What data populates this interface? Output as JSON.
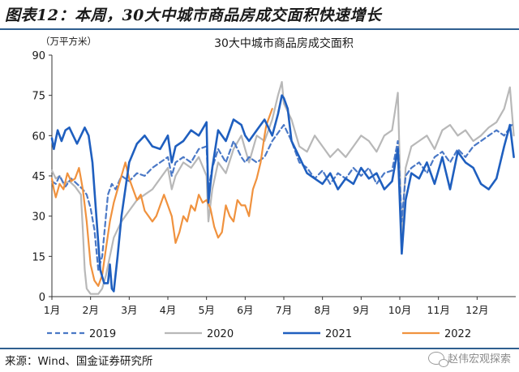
{
  "figure": {
    "title": "图表12：本周，30大中城市商品房成交面积快速增长",
    "source": "来源：Wind、国金证券研究所",
    "watermark": "赵伟宏观探索"
  },
  "chart_data": {
    "type": "line",
    "title": "30大中城市商品房成交面积",
    "ylabel": "（万平方米）",
    "xlabel": "",
    "ylim": [
      0,
      90
    ],
    "yticks": [
      0,
      15,
      30,
      45,
      60,
      75,
      90
    ],
    "xlim": [
      1,
      13
    ],
    "xticks": [
      1,
      2,
      3,
      4,
      5,
      6,
      7,
      8,
      9,
      10,
      11,
      12
    ],
    "xtick_labels": [
      "1月",
      "2月",
      "3月",
      "4月",
      "5月",
      "6月",
      "7月",
      "8月",
      "9月",
      "10月",
      "11月",
      "12月"
    ],
    "grid": false,
    "legend_position": "bottom",
    "series": [
      {
        "name": "2019",
        "color": "#4a78c6",
        "dash": true,
        "x": [
          1.0,
          1.1,
          1.2,
          1.35,
          1.5,
          1.65,
          1.8,
          1.9,
          2.0,
          2.1,
          2.2,
          2.3,
          2.45,
          2.55,
          2.65,
          2.8,
          3.0,
          3.2,
          3.4,
          3.6,
          3.8,
          4.0,
          4.1,
          4.2,
          4.4,
          4.6,
          4.8,
          5.0,
          5.05,
          5.15,
          5.3,
          5.5,
          5.7,
          5.9,
          6.0,
          6.1,
          6.3,
          6.5,
          6.7,
          6.9,
          7.0,
          7.2,
          7.4,
          7.6,
          7.8,
          8.0,
          8.2,
          8.4,
          8.6,
          8.8,
          9.0,
          9.2,
          9.4,
          9.6,
          9.8,
          9.95,
          10.05,
          10.15,
          10.3,
          10.5,
          10.7,
          10.9,
          11.1,
          11.3,
          11.5,
          11.7,
          11.9,
          12.1,
          12.3,
          12.5,
          12.7,
          12.9
        ],
        "y": [
          43,
          42,
          45,
          41,
          44,
          42,
          40,
          38,
          33,
          25,
          10,
          15,
          38,
          42,
          40,
          45,
          43,
          46,
          45,
          48,
          50,
          52,
          45,
          50,
          52,
          50,
          55,
          56,
          40,
          48,
          55,
          50,
          58,
          52,
          50,
          52,
          50,
          52,
          58,
          62,
          64,
          58,
          50,
          48,
          44,
          47,
          42,
          46,
          44,
          48,
          45,
          48,
          42,
          46,
          47,
          58,
          28,
          45,
          48,
          50,
          46,
          52,
          54,
          50,
          55,
          52,
          56,
          58,
          60,
          62,
          60,
          64
        ]
      },
      {
        "name": "2020",
        "color": "#b8b8b8",
        "dash": false,
        "x": [
          1.0,
          1.1,
          1.2,
          1.3,
          1.45,
          1.6,
          1.75,
          1.8,
          1.85,
          1.9,
          2.0,
          2.1,
          2.2,
          2.3,
          2.4,
          2.5,
          2.6,
          2.7,
          2.8,
          3.0,
          3.2,
          3.4,
          3.6,
          3.8,
          4.0,
          4.1,
          4.2,
          4.4,
          4.6,
          4.8,
          5.0,
          5.05,
          5.15,
          5.3,
          5.5,
          5.7,
          5.9,
          6.0,
          6.1,
          6.3,
          6.5,
          6.7,
          6.85,
          6.95,
          7.0,
          7.2,
          7.4,
          7.6,
          7.8,
          8.0,
          8.2,
          8.4,
          8.6,
          8.8,
          9.0,
          9.2,
          9.4,
          9.6,
          9.8,
          9.95,
          10.05,
          10.15,
          10.3,
          10.5,
          10.7,
          10.9,
          11.1,
          11.3,
          11.5,
          11.7,
          11.9,
          12.1,
          12.3,
          12.5,
          12.7,
          12.85,
          12.95
        ],
        "y": [
          47,
          44,
          45,
          42,
          43,
          41,
          38,
          25,
          10,
          3,
          1,
          1,
          1,
          3,
          8,
          15,
          22,
          25,
          28,
          32,
          36,
          38,
          40,
          44,
          48,
          40,
          45,
          50,
          48,
          52,
          45,
          28,
          40,
          50,
          46,
          55,
          60,
          55,
          50,
          60,
          58,
          66,
          75,
          80,
          72,
          66,
          56,
          54,
          60,
          56,
          52,
          55,
          52,
          56,
          60,
          58,
          54,
          60,
          62,
          76,
          22,
          48,
          56,
          58,
          60,
          55,
          62,
          64,
          60,
          62,
          58,
          60,
          63,
          65,
          70,
          78,
          60
        ]
      },
      {
        "name": "2021",
        "color": "#1f5fbf",
        "dash": false,
        "x": [
          1.0,
          1.05,
          1.15,
          1.25,
          1.35,
          1.45,
          1.55,
          1.65,
          1.75,
          1.85,
          1.95,
          2.05,
          2.15,
          2.25,
          2.35,
          2.45,
          2.5,
          2.55,
          2.6,
          2.7,
          2.8,
          3.0,
          3.2,
          3.4,
          3.6,
          3.8,
          4.0,
          4.1,
          4.2,
          4.4,
          4.6,
          4.8,
          5.0,
          5.05,
          5.15,
          5.3,
          5.5,
          5.7,
          5.9,
          6.0,
          6.1,
          6.3,
          6.5,
          6.7,
          6.85,
          6.95,
          7.0,
          7.1,
          7.2,
          7.4,
          7.6,
          7.8,
          8.0,
          8.2,
          8.4,
          8.6,
          8.8,
          9.0,
          9.2,
          9.4,
          9.6,
          9.8,
          9.95,
          10.05,
          10.15,
          10.3,
          10.5,
          10.7,
          10.9,
          11.1,
          11.3,
          11.5,
          11.7,
          11.9,
          12.1,
          12.3,
          12.5,
          12.7,
          12.85,
          12.95
        ],
        "y": [
          59,
          55,
          62,
          58,
          62,
          63,
          60,
          57,
          60,
          63,
          60,
          50,
          30,
          10,
          5,
          5,
          12,
          3,
          2,
          15,
          30,
          50,
          57,
          60,
          56,
          55,
          60,
          50,
          56,
          58,
          62,
          60,
          65,
          35,
          48,
          62,
          58,
          66,
          64,
          60,
          58,
          62,
          66,
          60,
          68,
          75,
          74,
          70,
          58,
          52,
          46,
          44,
          42,
          46,
          40,
          44,
          42,
          48,
          44,
          46,
          40,
          43,
          55,
          16,
          36,
          46,
          44,
          50,
          42,
          52,
          40,
          54,
          50,
          48,
          42,
          40,
          44,
          56,
          64,
          52
        ]
      },
      {
        "name": "2022",
        "color": "#f0923e",
        "dash": false,
        "x": [
          1.0,
          1.05,
          1.1,
          1.2,
          1.3,
          1.4,
          1.5,
          1.6,
          1.7,
          1.75,
          1.8,
          1.9,
          2.0,
          2.1,
          2.2,
          2.3,
          2.4,
          2.5,
          2.6,
          2.7,
          2.8,
          2.9,
          3.0,
          3.1,
          3.2,
          3.3,
          3.4,
          3.5,
          3.6,
          3.7,
          3.8,
          3.9,
          4.0,
          4.1,
          4.2,
          4.3,
          4.4,
          4.5,
          4.6,
          4.7,
          4.8,
          4.9,
          5.0,
          5.1,
          5.2,
          5.3,
          5.4,
          5.5,
          5.6,
          5.7,
          5.8,
          5.9,
          6.0,
          6.1,
          6.2,
          6.3,
          6.4,
          6.5,
          6.55,
          6.6,
          6.7
        ],
        "y": [
          44,
          40,
          37,
          42,
          40,
          46,
          43,
          44,
          48,
          44,
          40,
          28,
          12,
          6,
          4,
          8,
          18,
          28,
          35,
          40,
          45,
          50,
          44,
          40,
          36,
          38,
          32,
          30,
          28,
          30,
          34,
          38,
          34,
          30,
          20,
          24,
          30,
          28,
          34,
          32,
          38,
          35,
          36,
          33,
          26,
          22,
          24,
          34,
          30,
          28,
          36,
          34,
          34,
          30,
          40,
          44,
          50,
          60,
          64,
          66,
          70
        ]
      }
    ]
  }
}
